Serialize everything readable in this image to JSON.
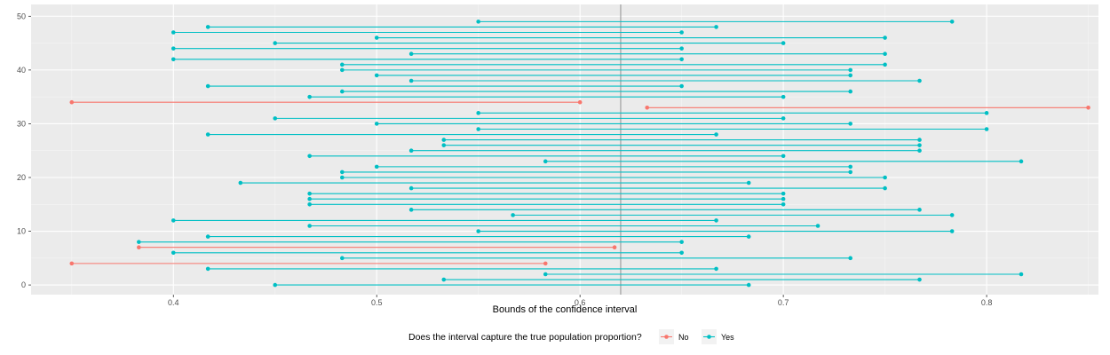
{
  "chart_data": {
    "type": "dumbbell",
    "xlabel": "Bounds of the confidence interval",
    "ylabel": "",
    "xlim": [
      0.33,
      0.855
    ],
    "ylim": [
      -1.8,
      52.2
    ],
    "x_ticks": [
      0.4,
      0.5,
      0.6,
      0.7,
      0.8
    ],
    "x_tick_labels": [
      "0.4",
      "0.5",
      "0.6",
      "0.7",
      "0.8"
    ],
    "y_ticks": [
      0,
      10,
      20,
      30,
      40,
      50
    ],
    "y_tick_labels": [
      "0",
      "10",
      "20",
      "30",
      "40",
      "50"
    ],
    "reference_line": 0.62,
    "grid": true,
    "legend": {
      "title": "Does the interval capture the true population proportion?",
      "placement": "bottom",
      "entries": [
        {
          "label": "No",
          "color": "#F8766D"
        },
        {
          "label": "Yes",
          "color": "#00BFC4"
        }
      ]
    },
    "colors": {
      "No": "#F8766D",
      "Yes": "#00BFC4",
      "reference": "#a6a6a6",
      "panel": "#ebebeb",
      "grid": "#ffffff"
    },
    "intervals": [
      {
        "sample": 1,
        "lower": 0.45,
        "upper": 0.683,
        "captures": "Yes"
      },
      {
        "sample": 2,
        "lower": 0.533,
        "upper": 0.767,
        "captures": "Yes"
      },
      {
        "sample": 3,
        "lower": 0.583,
        "upper": 0.817,
        "captures": "Yes"
      },
      {
        "sample": 4,
        "lower": 0.417,
        "upper": 0.667,
        "captures": "Yes"
      },
      {
        "sample": 5,
        "lower": 0.35,
        "upper": 0.583,
        "captures": "No"
      },
      {
        "sample": 6,
        "lower": 0.483,
        "upper": 0.733,
        "captures": "Yes"
      },
      {
        "sample": 7,
        "lower": 0.4,
        "upper": 0.65,
        "captures": "Yes"
      },
      {
        "sample": 8,
        "lower": 0.383,
        "upper": 0.617,
        "captures": "No"
      },
      {
        "sample": 9,
        "lower": 0.383,
        "upper": 0.65,
        "captures": "Yes"
      },
      {
        "sample": 10,
        "lower": 0.417,
        "upper": 0.683,
        "captures": "Yes"
      },
      {
        "sample": 11,
        "lower": 0.55,
        "upper": 0.783,
        "captures": "Yes"
      },
      {
        "sample": 12,
        "lower": 0.467,
        "upper": 0.717,
        "captures": "Yes"
      },
      {
        "sample": 13,
        "lower": 0.4,
        "upper": 0.667,
        "captures": "Yes"
      },
      {
        "sample": 14,
        "lower": 0.567,
        "upper": 0.783,
        "captures": "Yes"
      },
      {
        "sample": 15,
        "lower": 0.517,
        "upper": 0.767,
        "captures": "Yes"
      },
      {
        "sample": 16,
        "lower": 0.467,
        "upper": 0.7,
        "captures": "Yes"
      },
      {
        "sample": 17,
        "lower": 0.467,
        "upper": 0.7,
        "captures": "Yes"
      },
      {
        "sample": 18,
        "lower": 0.467,
        "upper": 0.7,
        "captures": "Yes"
      },
      {
        "sample": 19,
        "lower": 0.517,
        "upper": 0.75,
        "captures": "Yes"
      },
      {
        "sample": 20,
        "lower": 0.433,
        "upper": 0.683,
        "captures": "Yes"
      },
      {
        "sample": 21,
        "lower": 0.483,
        "upper": 0.75,
        "captures": "Yes"
      },
      {
        "sample": 22,
        "lower": 0.483,
        "upper": 0.733,
        "captures": "Yes"
      },
      {
        "sample": 23,
        "lower": 0.5,
        "upper": 0.733,
        "captures": "Yes"
      },
      {
        "sample": 24,
        "lower": 0.583,
        "upper": 0.817,
        "captures": "Yes"
      },
      {
        "sample": 25,
        "lower": 0.467,
        "upper": 0.7,
        "captures": "Yes"
      },
      {
        "sample": 26,
        "lower": 0.517,
        "upper": 0.767,
        "captures": "Yes"
      },
      {
        "sample": 27,
        "lower": 0.533,
        "upper": 0.767,
        "captures": "Yes"
      },
      {
        "sample": 28,
        "lower": 0.533,
        "upper": 0.767,
        "captures": "Yes"
      },
      {
        "sample": 29,
        "lower": 0.417,
        "upper": 0.667,
        "captures": "Yes"
      },
      {
        "sample": 30,
        "lower": 0.55,
        "upper": 0.8,
        "captures": "Yes"
      },
      {
        "sample": 31,
        "lower": 0.5,
        "upper": 0.733,
        "captures": "Yes"
      },
      {
        "sample": 32,
        "lower": 0.45,
        "upper": 0.7,
        "captures": "Yes"
      },
      {
        "sample": 33,
        "lower": 0.55,
        "upper": 0.8,
        "captures": "Yes"
      },
      {
        "sample": 34,
        "lower": 0.633,
        "upper": 0.85,
        "captures": "No"
      },
      {
        "sample": 35,
        "lower": 0.35,
        "upper": 0.6,
        "captures": "No"
      },
      {
        "sample": 36,
        "lower": 0.467,
        "upper": 0.7,
        "captures": "Yes"
      },
      {
        "sample": 37,
        "lower": 0.483,
        "upper": 0.733,
        "captures": "Yes"
      },
      {
        "sample": 38,
        "lower": 0.417,
        "upper": 0.65,
        "captures": "Yes"
      },
      {
        "sample": 39,
        "lower": 0.517,
        "upper": 0.767,
        "captures": "Yes"
      },
      {
        "sample": 40,
        "lower": 0.5,
        "upper": 0.733,
        "captures": "Yes"
      },
      {
        "sample": 41,
        "lower": 0.483,
        "upper": 0.733,
        "captures": "Yes"
      },
      {
        "sample": 42,
        "lower": 0.483,
        "upper": 0.75,
        "captures": "Yes"
      },
      {
        "sample": 43,
        "lower": 0.4,
        "upper": 0.65,
        "captures": "Yes"
      },
      {
        "sample": 44,
        "lower": 0.517,
        "upper": 0.75,
        "captures": "Yes"
      },
      {
        "sample": 45,
        "lower": 0.4,
        "upper": 0.65,
        "captures": "Yes"
      },
      {
        "sample": 46,
        "lower": 0.45,
        "upper": 0.7,
        "captures": "Yes"
      },
      {
        "sample": 47,
        "lower": 0.5,
        "upper": 0.75,
        "captures": "Yes"
      },
      {
        "sample": 48,
        "lower": 0.4,
        "upper": 0.65,
        "captures": "Yes"
      },
      {
        "sample": 49,
        "lower": 0.417,
        "upper": 0.667,
        "captures": "Yes"
      },
      {
        "sample": 50,
        "lower": 0.55,
        "upper": 0.783,
        "captures": "Yes"
      }
    ]
  }
}
